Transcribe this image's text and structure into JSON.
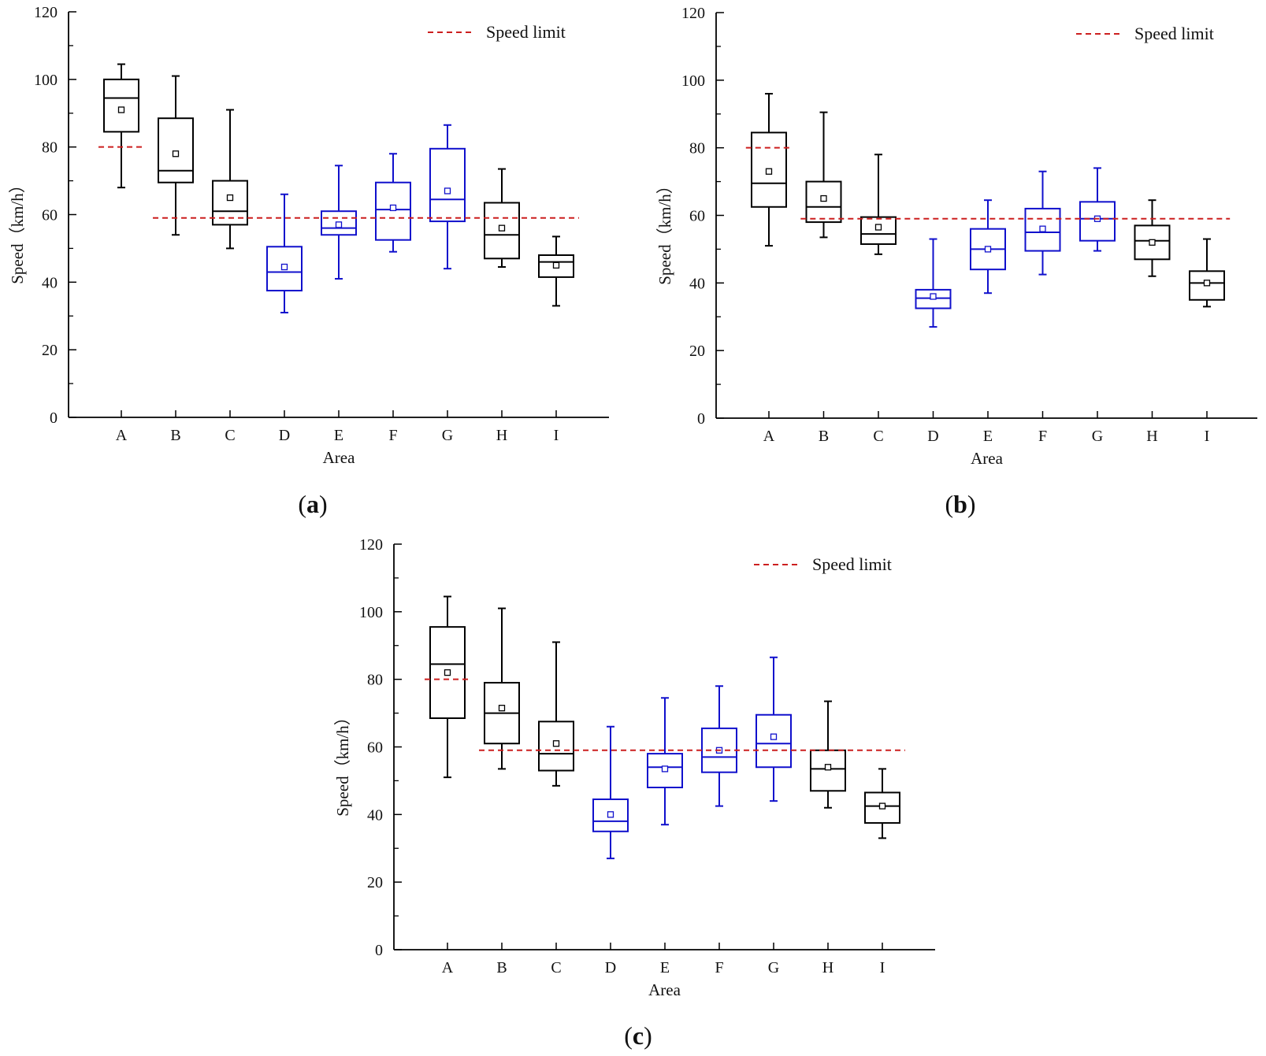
{
  "chart_data": [
    {
      "type": "box",
      "panel_label": "a",
      "xlabel": "Area",
      "ylabel": "Speed（km/h）",
      "ylim": [
        0,
        120
      ],
      "yticks": [
        0,
        20,
        40,
        60,
        80,
        100,
        120
      ],
      "legend": {
        "label": "Speed limit",
        "placement": "top-right"
      },
      "speed_limits": [
        {
          "value": 80,
          "from": "A",
          "to": "A"
        },
        {
          "value": 59,
          "from": "B",
          "to": "I"
        }
      ],
      "boxes": [
        {
          "category": "A",
          "min": 68,
          "q1": 84.5,
          "median": 94.5,
          "q3": 100,
          "max": 104.5,
          "mean": 91,
          "color": "#000000"
        },
        {
          "category": "B",
          "min": 54,
          "q1": 69.5,
          "median": 73,
          "q3": 88.5,
          "max": 101,
          "mean": 78,
          "color": "#000000"
        },
        {
          "category": "C",
          "min": 50,
          "q1": 57,
          "median": 61,
          "q3": 70,
          "max": 91,
          "mean": 65,
          "color": "#000000"
        },
        {
          "category": "D",
          "min": 31,
          "q1": 37.5,
          "median": 43,
          "q3": 50.5,
          "max": 66,
          "mean": 44.5,
          "color": "#1010cc"
        },
        {
          "category": "E",
          "min": 41,
          "q1": 54,
          "median": 56,
          "q3": 61,
          "max": 74.5,
          "mean": 57,
          "color": "#1010cc"
        },
        {
          "category": "F",
          "min": 49,
          "q1": 52.5,
          "median": 61.5,
          "q3": 69.5,
          "max": 78,
          "mean": 62,
          "color": "#1010cc"
        },
        {
          "category": "G",
          "min": 44,
          "q1": 58,
          "median": 64.5,
          "q3": 79.5,
          "max": 86.5,
          "mean": 67,
          "color": "#1010cc"
        },
        {
          "category": "H",
          "min": 44.5,
          "q1": 47,
          "median": 54,
          "q3": 63.5,
          "max": 73.5,
          "mean": 56,
          "color": "#000000"
        },
        {
          "category": "I",
          "min": 33,
          "q1": 41.5,
          "median": 46,
          "q3": 48,
          "max": 53.5,
          "mean": 45,
          "color": "#000000"
        }
      ]
    },
    {
      "type": "box",
      "panel_label": "b",
      "xlabel": "Area",
      "ylabel": "Speed（km/h）",
      "ylim": [
        0,
        120
      ],
      "yticks": [
        0,
        20,
        40,
        60,
        80,
        100,
        120
      ],
      "legend": {
        "label": "Speed limit",
        "placement": "top-right"
      },
      "speed_limits": [
        {
          "value": 80,
          "from": "A",
          "to": "A"
        },
        {
          "value": 59,
          "from": "B",
          "to": "I"
        }
      ],
      "boxes": [
        {
          "category": "A",
          "min": 51,
          "q1": 62.5,
          "median": 69.5,
          "q3": 84.5,
          "max": 96,
          "mean": 73,
          "color": "#000000"
        },
        {
          "category": "B",
          "min": 53.5,
          "q1": 58,
          "median": 62.5,
          "q3": 70,
          "max": 90.5,
          "mean": 65,
          "color": "#000000"
        },
        {
          "category": "C",
          "min": 48.5,
          "q1": 51.5,
          "median": 54.5,
          "q3": 59.5,
          "max": 78,
          "mean": 56.5,
          "color": "#000000"
        },
        {
          "category": "D",
          "min": 27,
          "q1": 32.5,
          "median": 35.5,
          "q3": 38,
          "max": 53,
          "mean": 36,
          "color": "#1010cc"
        },
        {
          "category": "E",
          "min": 37,
          "q1": 44,
          "median": 50,
          "q3": 56,
          "max": 64.5,
          "mean": 50,
          "color": "#1010cc"
        },
        {
          "category": "F",
          "min": 42.5,
          "q1": 49.5,
          "median": 55,
          "q3": 62,
          "max": 73,
          "mean": 56,
          "color": "#1010cc"
        },
        {
          "category": "G",
          "min": 49.5,
          "q1": 52.5,
          "median": 59,
          "q3": 64,
          "max": 74,
          "mean": 59,
          "color": "#1010cc"
        },
        {
          "category": "H",
          "min": 42,
          "q1": 47,
          "median": 52.5,
          "q3": 57,
          "max": 64.5,
          "mean": 52,
          "color": "#000000"
        },
        {
          "category": "I",
          "min": 33,
          "q1": 35,
          "median": 40,
          "q3": 43.5,
          "max": 53,
          "mean": 40,
          "color": "#000000"
        }
      ]
    },
    {
      "type": "box",
      "panel_label": "c",
      "xlabel": "Area",
      "ylabel": "Speed（km/h）",
      "ylim": [
        0,
        120
      ],
      "yticks": [
        0,
        20,
        40,
        60,
        80,
        100,
        120
      ],
      "legend": {
        "label": "Speed limit",
        "placement": "top-right"
      },
      "speed_limits": [
        {
          "value": 80,
          "from": "A",
          "to": "A"
        },
        {
          "value": 59,
          "from": "B",
          "to": "I"
        }
      ],
      "boxes": [
        {
          "category": "A",
          "min": 51,
          "q1": 68.5,
          "median": 84.5,
          "q3": 95.5,
          "max": 104.5,
          "mean": 82,
          "color": "#000000"
        },
        {
          "category": "B",
          "min": 53.5,
          "q1": 61,
          "median": 70,
          "q3": 79,
          "max": 101,
          "mean": 71.5,
          "color": "#000000"
        },
        {
          "category": "C",
          "min": 48.5,
          "q1": 53,
          "median": 58,
          "q3": 67.5,
          "max": 91,
          "mean": 61,
          "color": "#000000"
        },
        {
          "category": "D",
          "min": 27,
          "q1": 35,
          "median": 38,
          "q3": 44.5,
          "max": 66,
          "mean": 40,
          "color": "#1010cc"
        },
        {
          "category": "E",
          "min": 37,
          "q1": 48,
          "median": 54,
          "q3": 58,
          "max": 74.5,
          "mean": 53.5,
          "color": "#1010cc"
        },
        {
          "category": "F",
          "min": 42.5,
          "q1": 52.5,
          "median": 57,
          "q3": 65.5,
          "max": 78,
          "mean": 59,
          "color": "#1010cc"
        },
        {
          "category": "G",
          "min": 44,
          "q1": 54,
          "median": 61,
          "q3": 69.5,
          "max": 86.5,
          "mean": 63,
          "color": "#1010cc"
        },
        {
          "category": "H",
          "min": 42,
          "q1": 47,
          "median": 53.5,
          "q3": 59,
          "max": 73.5,
          "mean": 54,
          "color": "#000000"
        },
        {
          "category": "I",
          "min": 33,
          "q1": 37.5,
          "median": 42.5,
          "q3": 46.5,
          "max": 53.5,
          "mean": 42.5,
          "color": "#000000"
        }
      ]
    }
  ],
  "colors": {
    "speed_limit": "#cc1f1f",
    "axis": "#000000",
    "blue_box": "#1010cc",
    "black_box": "#000000"
  }
}
